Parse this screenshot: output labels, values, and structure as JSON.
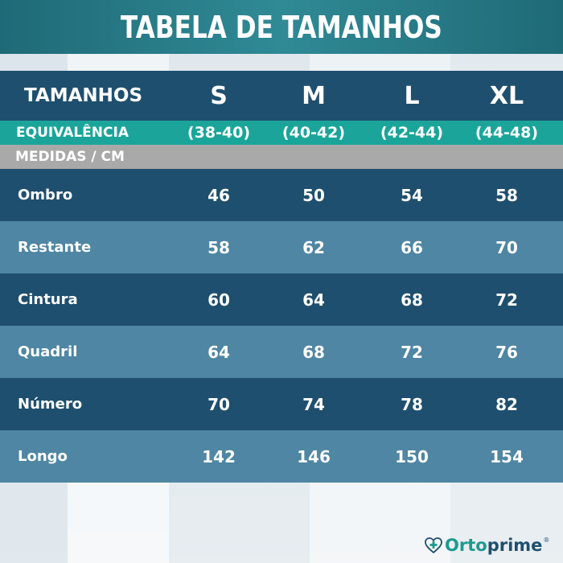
{
  "title": "TABELA DE TAMANHOS",
  "header": {
    "label": "TAMANHOS",
    "sizes": [
      "S",
      "M",
      "L",
      "XL"
    ]
  },
  "equivalence": {
    "label": "EQUIVALÊNCIA",
    "values": [
      "(38-40)",
      "(40-42)",
      "(42-44)",
      "(44-48)"
    ]
  },
  "section_label": "MEDIDAS / CM",
  "rows": [
    {
      "label": "Ombro",
      "values": [
        "46",
        "50",
        "54",
        "58"
      ]
    },
    {
      "label": "Restante",
      "values": [
        "58",
        "62",
        "66",
        "70"
      ]
    },
    {
      "label": "Cintura",
      "values": [
        "60",
        "64",
        "68",
        "72"
      ]
    },
    {
      "label": "Quadril",
      "values": [
        "64",
        "68",
        "72",
        "76"
      ]
    },
    {
      "label": "Número",
      "values": [
        "70",
        "74",
        "78",
        "82"
      ]
    },
    {
      "label": "Longo",
      "values": [
        "142",
        "146",
        "150",
        "154"
      ]
    }
  ],
  "logo": {
    "part1": "Orto",
    "part2": "prime",
    "reg": "®",
    "icon": "heart-plus-icon"
  },
  "colors": {
    "title_bar": "#2f8a95",
    "dark_row": "#1f4f6e",
    "light_row": "#4f86a3",
    "equivalence_row": "#1ba59a",
    "section_row": "#a9a9a9",
    "logo_teal": "#1c9a8d"
  }
}
